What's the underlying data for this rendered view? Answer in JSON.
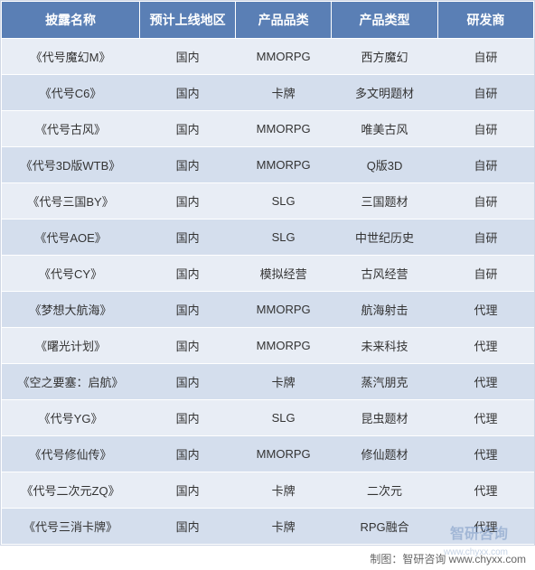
{
  "table": {
    "type": "table",
    "header_bg": "#5a7fb5",
    "header_fg": "#ffffff",
    "row_odd_bg": "#e8edf5",
    "row_even_bg": "#d4deed",
    "text_color": "#333333",
    "border_color": "#d0d7e5",
    "header_fontsize": 14,
    "cell_fontsize": 13,
    "columns": [
      {
        "key": "name",
        "label": "披露名称",
        "width": "26%"
      },
      {
        "key": "region",
        "label": "预计上线地区",
        "width": "18%"
      },
      {
        "key": "category",
        "label": "产品品类",
        "width": "18%"
      },
      {
        "key": "type",
        "label": "产品类型",
        "width": "20%"
      },
      {
        "key": "developer",
        "label": "研发商",
        "width": "18%"
      }
    ],
    "rows": [
      {
        "name": "《代号魔幻M》",
        "region": "国内",
        "category": "MMORPG",
        "type": "西方魔幻",
        "developer": "自研"
      },
      {
        "name": "《代号C6》",
        "region": "国内",
        "category": "卡牌",
        "type": "多文明题材",
        "developer": "自研"
      },
      {
        "name": "《代号古风》",
        "region": "国内",
        "category": "MMORPG",
        "type": "唯美古风",
        "developer": "自研"
      },
      {
        "name": "《代号3D版WTB》",
        "region": "国内",
        "category": "MMORPG",
        "type": "Q版3D",
        "developer": "自研"
      },
      {
        "name": "《代号三国BY》",
        "region": "国内",
        "category": "SLG",
        "type": "三国题材",
        "developer": "自研"
      },
      {
        "name": "《代号AOE》",
        "region": "国内",
        "category": "SLG",
        "type": "中世纪历史",
        "developer": "自研"
      },
      {
        "name": "《代号CY》",
        "region": "国内",
        "category": "模拟经营",
        "type": "古风经营",
        "developer": "自研"
      },
      {
        "name": "《梦想大航海》",
        "region": "国内",
        "category": "MMORPG",
        "type": "航海射击",
        "developer": "代理"
      },
      {
        "name": "《曙光计划》",
        "region": "国内",
        "category": "MMORPG",
        "type": "未来科技",
        "developer": "代理"
      },
      {
        "name": "《空之要塞：启航》",
        "region": "国内",
        "category": "卡牌",
        "type": "蒸汽朋克",
        "developer": "代理"
      },
      {
        "name": "《代号YG》",
        "region": "国内",
        "category": "SLG",
        "type": "昆虫题材",
        "developer": "代理"
      },
      {
        "name": "《代号修仙传》",
        "region": "国内",
        "category": "MMORPG",
        "type": "修仙题材",
        "developer": "代理"
      },
      {
        "name": "《代号二次元ZQ》",
        "region": "国内",
        "category": "卡牌",
        "type": "二次元",
        "developer": "代理"
      },
      {
        "name": "《代号三消卡牌》",
        "region": "国内",
        "category": "卡牌",
        "type": "RPG融合",
        "developer": "代理"
      }
    ]
  },
  "footer": {
    "text": "制图：智研咨询 www.chyxx.com",
    "fontsize": 12,
    "color": "#666666"
  },
  "watermark": {
    "main": "智研咨询",
    "sub": "www.chyxx.com",
    "color": "#5a7fb5"
  }
}
